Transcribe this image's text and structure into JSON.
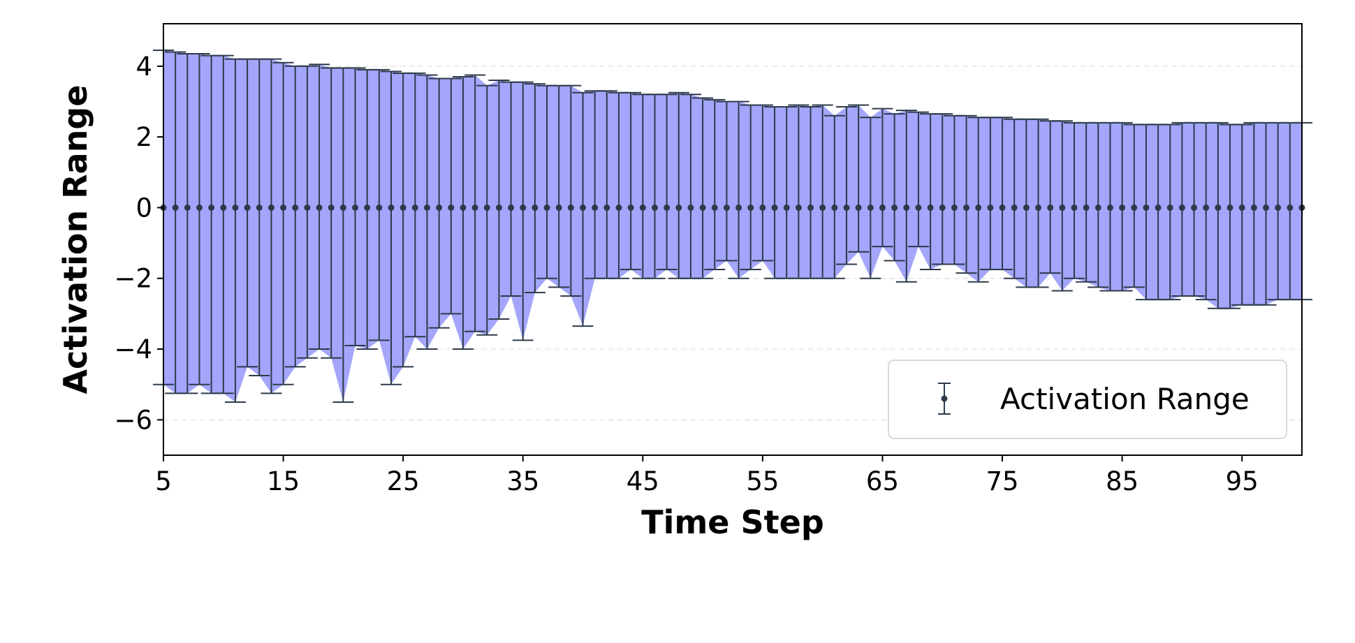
{
  "colors": {
    "fill": "#a3a6fb",
    "errorbar": "#2d3a4a",
    "axis": "#000000",
    "grid": "#e6e6e6",
    "background": "#ffffff",
    "legend_border": "#d9d9d9"
  },
  "chart_data": {
    "type": "errorbar_area",
    "xlabel": "Time Step",
    "ylabel": "Activation Range",
    "xlim": [
      5,
      100
    ],
    "ylim": [
      -7,
      5.2
    ],
    "xticks": [
      5,
      15,
      25,
      35,
      45,
      55,
      65,
      75,
      85,
      95
    ],
    "xtick_labels": [
      "5",
      "15",
      "25",
      "35",
      "45",
      "55",
      "65",
      "75",
      "85",
      "95"
    ],
    "yticks": [
      4,
      2,
      0,
      -2,
      -4,
      -6
    ],
    "ytick_labels": [
      "4",
      "2",
      "0",
      "−2",
      "−4",
      "−6"
    ],
    "grid": "horizontal dashed",
    "legend": {
      "position": "lower right",
      "entries": [
        "Activation Range"
      ]
    },
    "series": [
      {
        "name": "Activation Range",
        "x": [
          5,
          6,
          7,
          8,
          9,
          10,
          11,
          12,
          13,
          14,
          15,
          16,
          17,
          18,
          19,
          20,
          21,
          22,
          23,
          24,
          25,
          26,
          27,
          28,
          29,
          30,
          31,
          32,
          33,
          34,
          35,
          36,
          37,
          38,
          39,
          40,
          41,
          42,
          43,
          44,
          45,
          46,
          47,
          48,
          49,
          50,
          51,
          52,
          53,
          54,
          55,
          56,
          57,
          58,
          59,
          60,
          61,
          62,
          63,
          64,
          65,
          66,
          67,
          68,
          69,
          70,
          71,
          72,
          73,
          74,
          75,
          76,
          77,
          78,
          79,
          80,
          81,
          82,
          83,
          84,
          85,
          86,
          87,
          88,
          89,
          90,
          91,
          92,
          93,
          94,
          95,
          96,
          97,
          98,
          99,
          100
        ],
        "center": [
          0,
          0,
          0,
          0,
          0,
          0,
          0,
          0,
          0,
          0,
          0,
          0,
          0,
          0,
          0,
          0,
          0,
          0,
          0,
          0,
          0,
          0,
          0,
          0,
          0,
          0,
          0,
          0,
          0,
          0,
          0,
          0,
          0,
          0,
          0,
          0,
          0,
          0,
          0,
          0,
          0,
          0,
          0,
          0,
          0,
          0,
          0,
          0,
          0,
          0,
          0,
          0,
          0,
          0,
          0,
          0,
          0,
          0,
          0,
          0,
          0,
          0,
          0,
          0,
          0,
          0,
          0,
          0,
          0,
          0,
          0,
          0,
          0,
          0,
          0,
          0,
          0,
          0,
          0,
          0,
          0,
          0,
          0,
          0,
          0,
          0,
          0,
          0,
          0,
          0,
          0,
          0,
          0,
          0,
          0,
          0
        ],
        "upper": [
          4.45,
          4.4,
          4.35,
          4.35,
          4.3,
          4.3,
          4.2,
          4.2,
          4.2,
          4.2,
          4.1,
          4.0,
          4.0,
          4.05,
          3.95,
          3.95,
          3.95,
          3.9,
          3.9,
          3.85,
          3.8,
          3.8,
          3.75,
          3.65,
          3.65,
          3.7,
          3.75,
          3.45,
          3.6,
          3.55,
          3.55,
          3.5,
          3.45,
          3.45,
          3.45,
          3.25,
          3.3,
          3.3,
          3.25,
          3.25,
          3.2,
          3.2,
          3.2,
          3.25,
          3.2,
          3.1,
          3.05,
          3.0,
          3.0,
          2.9,
          2.9,
          2.85,
          2.85,
          2.9,
          2.85,
          2.9,
          2.6,
          2.85,
          2.9,
          2.55,
          2.8,
          2.65,
          2.75,
          2.7,
          2.65,
          2.65,
          2.6,
          2.6,
          2.55,
          2.55,
          2.55,
          2.5,
          2.5,
          2.5,
          2.45,
          2.45,
          2.4,
          2.4,
          2.4,
          2.4,
          2.4,
          2.35,
          2.35,
          2.35,
          2.35,
          2.4,
          2.4,
          2.4,
          2.4,
          2.35,
          2.35,
          2.4,
          2.4,
          2.4,
          2.4,
          2.4
        ],
        "lower": [
          -5.0,
          -5.25,
          -5.25,
          -5.0,
          -5.25,
          -5.25,
          -5.5,
          -4.5,
          -4.75,
          -5.25,
          -5.0,
          -4.5,
          -4.25,
          -4.0,
          -4.25,
          -5.5,
          -3.9,
          -4.0,
          -3.75,
          -5.0,
          -4.5,
          -3.65,
          -4.0,
          -3.4,
          -3.0,
          -4.0,
          -3.5,
          -3.6,
          -3.15,
          -2.5,
          -3.75,
          -2.4,
          -2.0,
          -2.25,
          -2.5,
          -3.35,
          -2.0,
          -2.0,
          -2.0,
          -1.75,
          -2.0,
          -2.0,
          -1.75,
          -2.0,
          -2.0,
          -2.0,
          -1.75,
          -1.5,
          -2.0,
          -1.75,
          -1.5,
          -2.0,
          -2.0,
          -2.0,
          -2.0,
          -2.0,
          -2.0,
          -1.6,
          -1.25,
          -2.0,
          -1.1,
          -1.5,
          -2.1,
          -1.1,
          -1.75,
          -1.6,
          -1.6,
          -1.85,
          -2.1,
          -1.75,
          -1.75,
          -2.0,
          -2.25,
          -2.25,
          -1.85,
          -2.35,
          -2.0,
          -2.1,
          -2.25,
          -2.35,
          -2.35,
          -2.25,
          -2.6,
          -2.6,
          -2.6,
          -2.5,
          -2.5,
          -2.6,
          -2.85,
          -2.85,
          -2.75,
          -2.75,
          -2.75,
          -2.6,
          -2.6,
          -2.6
        ]
      }
    ]
  }
}
